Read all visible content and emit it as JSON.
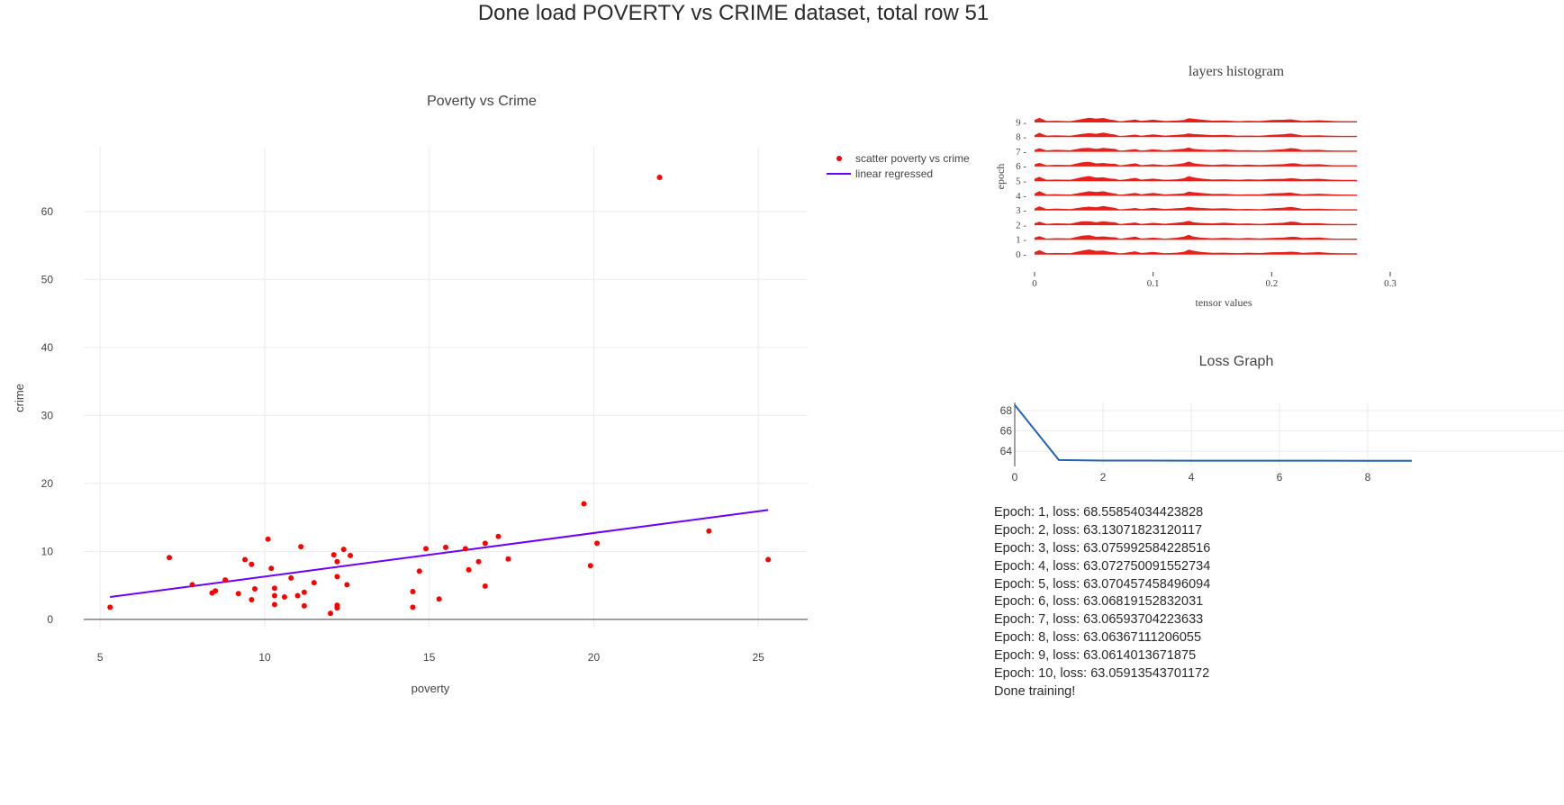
{
  "page_title": "Done load POVERTY vs CRIME dataset, total row 51",
  "colors": {
    "scatter": "#ff0000",
    "regression": "#6a00ff",
    "histogram": "#e8201a",
    "loss": "#1f63b4"
  },
  "chart_data": [
    {
      "type": "scatter",
      "title": "Poverty vs Crime",
      "xlabel": "poverty",
      "ylabel": "crime",
      "xlim": [
        4.5,
        26.5
      ],
      "ylim": [
        -1.2,
        69.5
      ],
      "xticks": [
        5,
        10,
        15,
        20,
        25
      ],
      "yticks": [
        0,
        10,
        20,
        30,
        40,
        50,
        60
      ],
      "grid": true,
      "legend_position": "top-right",
      "series": [
        {
          "name": "scatter poverty vs crime",
          "mode": "markers",
          "x": [
            5.3,
            7.1,
            7.8,
            8.4,
            8.5,
            8.8,
            9.2,
            9.4,
            9.6,
            9.6,
            9.7,
            10.1,
            10.2,
            10.3,
            10.3,
            10.3,
            10.6,
            10.8,
            11.0,
            11.1,
            11.2,
            11.2,
            11.5,
            12.0,
            12.1,
            12.2,
            12.2,
            12.2,
            12.2,
            12.4,
            12.5,
            12.6,
            14.5,
            14.5,
            14.7,
            14.9,
            15.3,
            15.5,
            16.1,
            16.2,
            16.5,
            16.7,
            16.7,
            17.1,
            17.4,
            19.7,
            19.9,
            20.1,
            22.0,
            23.5,
            25.3
          ],
          "y": [
            1.8,
            9.1,
            5.1,
            3.9,
            4.2,
            5.8,
            3.8,
            8.8,
            2.9,
            8.1,
            4.5,
            11.8,
            7.5,
            2.2,
            3.5,
            4.6,
            3.3,
            6.1,
            3.5,
            10.7,
            2.0,
            4.0,
            5.4,
            0.9,
            9.5,
            1.7,
            2.1,
            6.3,
            8.5,
            10.3,
            5.1,
            9.4,
            1.8,
            4.1,
            7.1,
            10.4,
            3.0,
            10.6,
            10.4,
            7.3,
            8.5,
            4.9,
            11.2,
            12.2,
            8.9,
            17.0,
            7.9,
            11.2,
            65.0,
            13.0,
            8.8
          ]
        },
        {
          "name": "linear regressed",
          "mode": "lines",
          "x": [
            5.3,
            25.3
          ],
          "y": [
            3.3,
            16.1
          ]
        }
      ]
    },
    {
      "type": "histogram",
      "title": "layers histogram",
      "xlabel": "tensor values",
      "ylabel": "epoch",
      "xlim": [
        -0.002,
        0.3
      ],
      "xticks": [
        0,
        0.1,
        0.2,
        0.3
      ],
      "yticks": [
        0,
        1,
        2,
        3,
        4,
        5,
        6,
        7,
        8,
        9
      ],
      "series": [
        {
          "name": "",
          "x": [
            0.0,
            0.004,
            0.01,
            0.018,
            0.03,
            0.04,
            0.046,
            0.052,
            0.058,
            0.064,
            0.068,
            0.072,
            0.085,
            0.09,
            0.1,
            0.11,
            0.12,
            0.126,
            0.13,
            0.134,
            0.14,
            0.15,
            0.16,
            0.172,
            0.18,
            0.19,
            0.2,
            0.21,
            0.216,
            0.22,
            0.226,
            0.24,
            0.25,
            0.262,
            0.27
          ],
          "y": [
            0.4,
            0.9,
            0.2,
            0.3,
            0.2,
            0.8,
            1.0,
            0.7,
            0.9,
            0.6,
            0.5,
            0.1,
            0.6,
            0.2,
            0.5,
            0.2,
            0.4,
            0.6,
            1.0,
            0.7,
            0.5,
            0.3,
            0.4,
            0.2,
            0.3,
            0.2,
            0.4,
            0.5,
            0.7,
            0.6,
            0.3,
            0.4,
            0.2,
            0.1,
            0.1
          ]
        }
      ]
    },
    {
      "type": "line",
      "title": "Loss Graph",
      "xlabel": "",
      "ylabel": "",
      "xlim": [
        0,
        9.4
      ],
      "ylim": [
        62.5,
        68.8
      ],
      "xticks": [
        0,
        2,
        4,
        6,
        8
      ],
      "yticks": [
        64,
        66,
        68
      ],
      "grid": true,
      "series": [
        {
          "name": "",
          "x": [
            0,
            1,
            2,
            3,
            4,
            5,
            6,
            7,
            8,
            9
          ],
          "y": [
            68.55854034423828,
            63.13071823120117,
            63.075992584228516,
            63.072750091552734,
            63.070457458496094,
            63.06819152832031,
            63.06593704223633,
            63.06367111206055,
            63.0614013671875,
            63.05913543701172
          ]
        }
      ]
    }
  ],
  "training_log": [
    "Epoch: 1, loss: 68.55854034423828",
    "Epoch: 2, loss: 63.13071823120117",
    "Epoch: 3, loss: 63.075992584228516",
    "Epoch: 4, loss: 63.072750091552734",
    "Epoch: 5, loss: 63.070457458496094",
    "Epoch: 6, loss: 63.06819152832031",
    "Epoch: 7, loss: 63.06593704223633",
    "Epoch: 8, loss: 63.06367111206055",
    "Epoch: 9, loss: 63.0614013671875",
    "Epoch: 10, loss: 63.05913543701172",
    "Done training!"
  ]
}
